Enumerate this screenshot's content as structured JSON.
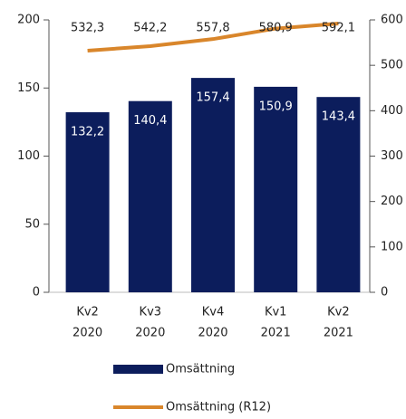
{
  "chart_data": {
    "type": "bar_line",
    "categories": [
      [
        "Kv2",
        "2020"
      ],
      [
        "Kv3",
        "2020"
      ],
      [
        "Kv4",
        "2020"
      ],
      [
        "Kv1",
        "2021"
      ],
      [
        "Kv2",
        "2021"
      ]
    ],
    "series": [
      {
        "name": "Omsättning",
        "type": "bar",
        "color": "#0c1d5c",
        "values": [
          132.2,
          140.4,
          157.4,
          150.9,
          143.4
        ],
        "value_labels": [
          "132,2",
          "140,4",
          "157,4",
          "150,9",
          "143,4"
        ]
      },
      {
        "name": "Omsättning (R12)",
        "type": "line",
        "axis": "y2",
        "color": "#d9862b",
        "values": [
          532.3,
          542.2,
          557.8,
          580.9,
          592.1
        ],
        "value_labels": [
          "532,3",
          "542,2",
          "557,8",
          "580,9",
          "592,1"
        ]
      }
    ],
    "ylim": [
      0,
      200
    ],
    "yticks": [
      0,
      50,
      100,
      150,
      200
    ],
    "y2lim": [
      0,
      600
    ],
    "y2ticks": [
      0,
      100,
      200,
      300,
      400,
      500,
      600
    ]
  }
}
